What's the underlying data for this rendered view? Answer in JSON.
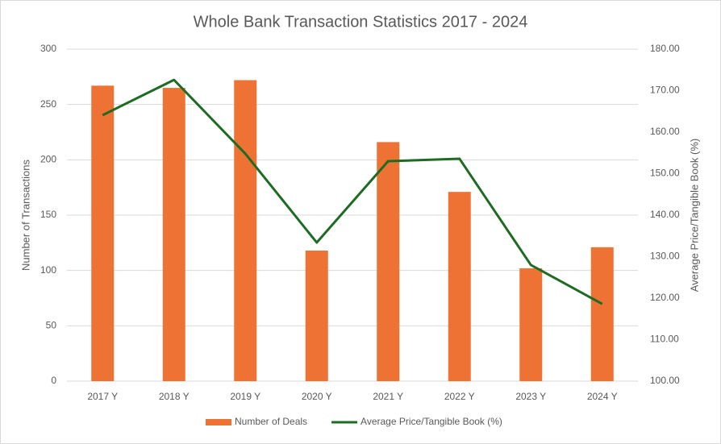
{
  "chart_data": {
    "type": "bar",
    "title": "Whole Bank Transaction Statistics 2017 - 2024",
    "y_label": "Number of Transactions",
    "y2_label": "Average Price/Tangible Book (%)",
    "categories": [
      "2017 Y",
      "2018 Y",
      "2019 Y",
      "2020 Y",
      "2021 Y",
      "2022 Y",
      "2023 Y",
      "2024 Y"
    ],
    "series": [
      {
        "name": "Number of Deals",
        "color": "#ed7233",
        "values": [
          267,
          265,
          272,
          118,
          216,
          171,
          102,
          121
        ]
      },
      {
        "name": "Average Price/Tangible Book (%)",
        "color": "#1e6b23",
        "type": "line",
        "axis": "y2",
        "values": [
          164.1,
          172.6,
          154.8,
          133.4,
          153.0,
          153.6,
          128.0,
          118.6
        ]
      }
    ],
    "ylim": [
      0,
      300
    ],
    "yticks": [
      0,
      50,
      100,
      150,
      200,
      250,
      300
    ],
    "y2lim": [
      100,
      180
    ],
    "y2ticks": [
      {
        "value": 100,
        "label": "100.00"
      },
      {
        "value": 110,
        "label": "110.00"
      },
      {
        "value": 120,
        "label": "120.00"
      },
      {
        "value": 130,
        "label": "130.00"
      },
      {
        "value": 140,
        "label": "140.00"
      },
      {
        "value": 150,
        "label": "150.00"
      },
      {
        "value": 160,
        "label": "160.00"
      },
      {
        "value": 170,
        "label": "170.00"
      },
      {
        "value": 180,
        "label": "180.00"
      }
    ],
    "grid": true,
    "legend": "bottom"
  }
}
